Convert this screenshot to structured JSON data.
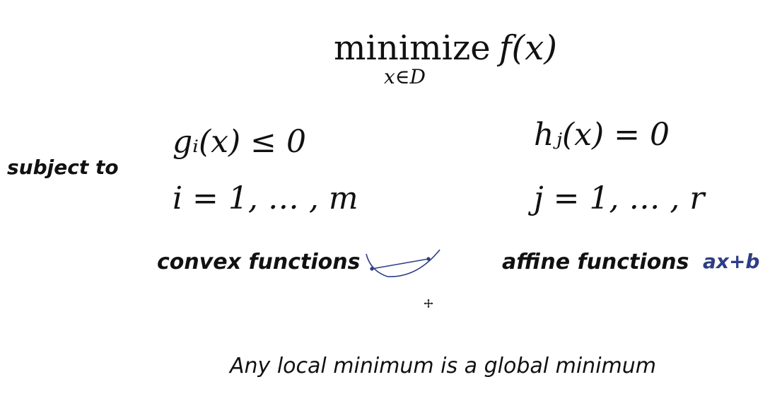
{
  "objective": {
    "operator": "minimize",
    "subscript": "x∈D",
    "function": "f(x)"
  },
  "subject_to": "subject to",
  "inequality": {
    "constraint": "gᵢ(x) ≤ 0",
    "index": "i = 1, … , m",
    "label": "convex functions"
  },
  "equality": {
    "constraint": "hⱼ(x) = 0",
    "index": "j = 1, … , r",
    "label": "affine functions",
    "example": "ax+b"
  },
  "conclusion": "Any local minimum is a global minimum",
  "colors": {
    "ink": "#111111",
    "sketch_blue": "#2e3e86"
  },
  "icons": [
    "convex-curve-sketch-icon",
    "move-cursor-icon"
  ]
}
